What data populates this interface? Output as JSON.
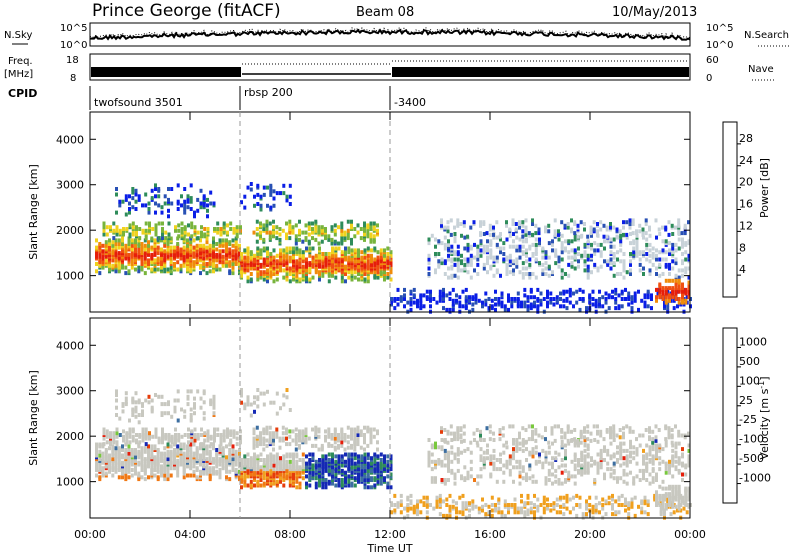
{
  "header": {
    "station": "Prince George (fitACF)",
    "beam": "Beam 08",
    "date": "10/May/2013"
  },
  "noise_panel": {
    "left_label": "N.Sky",
    "right_label": "N.Search",
    "left_ticks": [
      "10^5",
      "10^0"
    ],
    "right_ticks": [
      "10^5",
      "10^0"
    ]
  },
  "freq_panel": {
    "left_label_1": "Freq.",
    "left_label_2": "[MHz]",
    "right_label": "Nave",
    "left_ticks": [
      "18",
      "8"
    ],
    "right_ticks": [
      "60",
      "0"
    ]
  },
  "cpid": {
    "label": "CPID",
    "segments": [
      {
        "start_h": 0,
        "name": "twofsound 3501"
      },
      {
        "start_h": 6,
        "name": "rbsp 200"
      },
      {
        "start_h": 12,
        "name": "-3400"
      }
    ]
  },
  "chart_data": [
    {
      "type": "heatmap",
      "quantity": "Power",
      "ylabel": "Slant Range [km]",
      "ylim": [
        200,
        4600
      ],
      "yticks": [
        "1000",
        "2000",
        "3000",
        "4000"
      ],
      "xlim": [
        0,
        24
      ],
      "colorbar": {
        "label": "Power [dB]",
        "ticks": [
          "4",
          "8",
          "12",
          "16",
          "20",
          "24",
          "28"
        ],
        "colors": [
          "#0a1ee6",
          "#2850b4",
          "#2e8c5a",
          "#78b43c",
          "#f0d21e",
          "#f08c0a",
          "#f05010",
          "#e61e0a"
        ]
      }
    },
    {
      "type": "heatmap",
      "quantity": "Velocity",
      "ylabel": "Slant Range [km]",
      "ylim": [
        200,
        4600
      ],
      "yticks": [
        "1000",
        "2000",
        "3000",
        "4000"
      ],
      "xlim": [
        0,
        24
      ],
      "xlabel": "Time UT",
      "xticks": [
        "00:00",
        "04:00",
        "08:00",
        "12:00",
        "16:00",
        "20:00",
        "00:00"
      ],
      "colorbar": {
        "label_main": "Velocity",
        "label_unit": "[m s",
        "label_exp": "-1",
        "label_close": "]",
        "ticks": [
          "1000",
          "500",
          "100",
          "25",
          "-25",
          "-100",
          "-500",
          "-1000"
        ],
        "colors": [
          "#1428b4",
          "#3c6ea0",
          "#2e8c5a",
          "#78c83c",
          "#c8c8c0",
          "#f0a01e",
          "#f07814",
          "#e63c0a",
          "#e61e0a"
        ]
      }
    }
  ]
}
